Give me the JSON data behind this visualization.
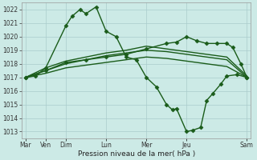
{
  "background_color": "#cceae6",
  "grid_color": "#aacccc",
  "line_color": "#1a5c1a",
  "xlabel": "Pression niveau de la mer( hPa )",
  "ylim": [
    1012.5,
    1022.5
  ],
  "yticks": [
    1013,
    1014,
    1015,
    1016,
    1017,
    1018,
    1019,
    1020,
    1021,
    1022
  ],
  "xlim": [
    -0.2,
    11.2
  ],
  "series": [
    {
      "x": [
        0,
        0.5,
        1,
        2,
        2.3,
        2.7,
        3,
        3.5,
        4,
        4.5,
        5,
        5.5,
        6,
        6.5,
        7,
        7.3,
        7.5,
        8,
        8.3,
        8.7,
        9,
        9.3,
        9.7,
        10,
        10.5,
        11
      ],
      "y": [
        1017.0,
        1017.1,
        1017.7,
        1020.8,
        1021.5,
        1022.0,
        1021.7,
        1022.2,
        1020.4,
        1020.0,
        1018.5,
        1018.3,
        1017.0,
        1016.3,
        1015.0,
        1014.6,
        1014.7,
        1013.0,
        1013.1,
        1013.3,
        1015.3,
        1015.8,
        1016.5,
        1017.1,
        1017.2,
        1017.0
      ],
      "marker": "D",
      "markersize": 2.5,
      "linewidth": 1.0
    },
    {
      "x": [
        0,
        1,
        2,
        3,
        4,
        5,
        6,
        7,
        7.5,
        8,
        8.5,
        9,
        9.5,
        10,
        10.3,
        10.7,
        11
      ],
      "y": [
        1017.0,
        1017.5,
        1018.1,
        1018.3,
        1018.5,
        1018.7,
        1019.1,
        1019.5,
        1019.6,
        1020.0,
        1019.7,
        1019.5,
        1019.5,
        1019.5,
        1019.2,
        1018.0,
        1017.0
      ],
      "marker": "D",
      "markersize": 2.5,
      "linewidth": 1.0
    },
    {
      "x": [
        0,
        1,
        2,
        3,
        4,
        5,
        6,
        7,
        8,
        9,
        10,
        11
      ],
      "y": [
        1017.0,
        1017.3,
        1017.7,
        1017.9,
        1018.1,
        1018.3,
        1018.5,
        1018.4,
        1018.2,
        1018.0,
        1017.8,
        1017.0
      ],
      "marker": null,
      "markersize": 0,
      "linewidth": 1.0
    },
    {
      "x": [
        0,
        1,
        2,
        3,
        4,
        5,
        6,
        7,
        8,
        9,
        10,
        11
      ],
      "y": [
        1017.0,
        1017.5,
        1018.0,
        1018.3,
        1018.6,
        1018.8,
        1019.0,
        1018.9,
        1018.7,
        1018.5,
        1018.3,
        1017.0
      ],
      "marker": null,
      "markersize": 0,
      "linewidth": 1.0
    },
    {
      "x": [
        0,
        1,
        2,
        3,
        4,
        5,
        6,
        7,
        8,
        9,
        10,
        11
      ],
      "y": [
        1017.0,
        1017.7,
        1018.2,
        1018.5,
        1018.8,
        1019.0,
        1019.3,
        1019.1,
        1018.9,
        1018.7,
        1018.5,
        1017.1
      ],
      "marker": null,
      "markersize": 0,
      "linewidth": 1.0
    }
  ],
  "xtick_label_map": {
    "0": "Mar",
    "1": "Ven",
    "2": "Dim",
    "4": "Lun",
    "6": "Mer",
    "8": "Jeu",
    "11": "Sam"
  }
}
